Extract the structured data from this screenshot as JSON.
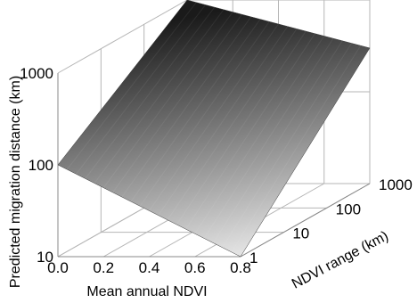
{
  "chart_data": {
    "type": "surface3d",
    "xlabel": "Mean annual NDVI",
    "ylabel": "NDVI range (km)",
    "zlabel": "Predicted migration distance (km)",
    "x_ticks": [
      "0.0",
      "0.2",
      "0.4",
      "0.6",
      "0.8"
    ],
    "y_ticks": [
      "1",
      "10",
      "100",
      "1000"
    ],
    "z_ticks": [
      "10",
      "100",
      "1000"
    ],
    "xlim": [
      0,
      0.8
    ],
    "ylim": [
      1,
      1000
    ],
    "zlim": [
      10,
      1000
    ],
    "y_scale": "log",
    "z_scale": "log",
    "grid": true,
    "surface": {
      "corners": [
        {
          "x": 0.0,
          "y": 1,
          "z": 100
        },
        {
          "x": 0.0,
          "y": 1000,
          "z": 1000
        },
        {
          "x": 0.8,
          "y": 1,
          "z": 10
        },
        {
          "x": 0.8,
          "y": 1000,
          "z": 300
        }
      ],
      "colors": [
        "#f2f2f2",
        "#1a1a1a"
      ]
    }
  }
}
